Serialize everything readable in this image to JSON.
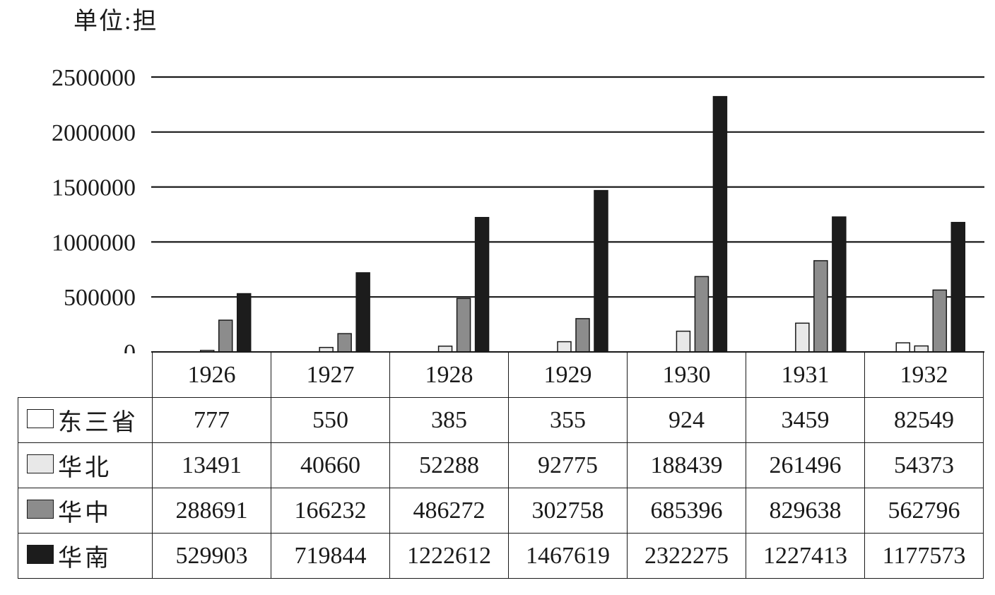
{
  "chart_data": {
    "type": "bar",
    "unit_label": "单位:担",
    "categories": [
      "1926",
      "1927",
      "1928",
      "1929",
      "1930",
      "1931",
      "1932"
    ],
    "y_ticks": [
      "2500000",
      "2000000",
      "1500000",
      "1000000",
      "500000",
      "0"
    ],
    "ylim": [
      0,
      2500000
    ],
    "grid": true,
    "legend": "table-rows",
    "series": [
      {
        "name": "东三省",
        "color": "#ffffff",
        "values": [
          777,
          550,
          385,
          355,
          924,
          3459,
          82549
        ]
      },
      {
        "name": "华北",
        "color": "#e8e8e8",
        "values": [
          13491,
          40660,
          52288,
          92775,
          188439,
          261496,
          54373
        ]
      },
      {
        "name": "华中",
        "color": "#8c8c8c",
        "values": [
          288691,
          166232,
          486272,
          302758,
          685396,
          829638,
          562796
        ]
      },
      {
        "name": "华南",
        "color": "#1c1c1c",
        "values": [
          529903,
          719844,
          1222612,
          1467619,
          2322275,
          1227413,
          1177573
        ]
      }
    ]
  }
}
